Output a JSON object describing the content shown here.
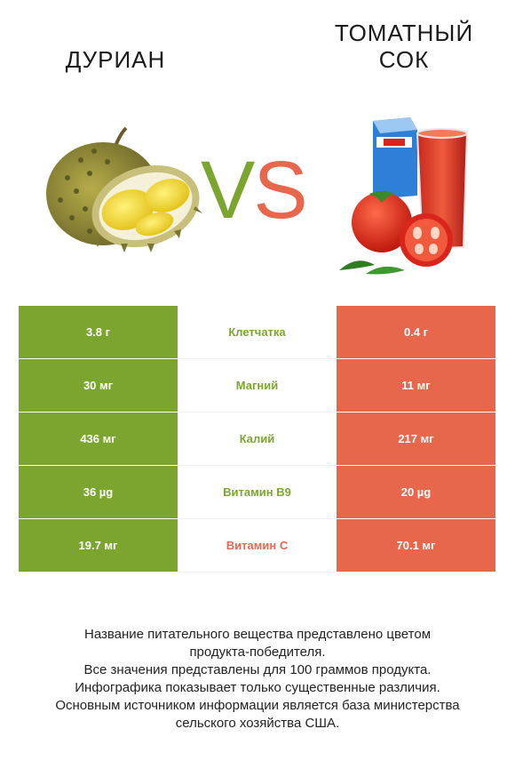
{
  "left_title": "ДУРИАН",
  "right_title_line1": "ТОМАТНЫЙ",
  "right_title_line2": "СОК",
  "vs_v": "V",
  "vs_s": "S",
  "colors": {
    "green": "#7ba52f",
    "red": "#e7674c"
  },
  "rows": [
    {
      "left": "3.8 г",
      "nutrient": "Клетчатка",
      "right": "0.4 г",
      "winner": "green"
    },
    {
      "left": "30 мг",
      "nutrient": "Магний",
      "right": "11 мг",
      "winner": "green"
    },
    {
      "left": "436 мг",
      "nutrient": "Калий",
      "right": "217 мг",
      "winner": "green"
    },
    {
      "left": "36 µg",
      "nutrient": "Витамин B9",
      "right": "20 µg",
      "winner": "green"
    },
    {
      "left": "19.7 мг",
      "nutrient": "Витамин C",
      "right": "70.1 мг",
      "winner": "red"
    }
  ],
  "footer": {
    "line1": "Название питательного вещества представлено цветом",
    "line2": "продукта-победителя.",
    "line3": "Все значения представлены для 100 граммов продукта.",
    "line4": "Инфографика показывает только существенные различия.",
    "line5": "Основным источником информации является база министерства",
    "line6": "сельского хозяйства США."
  }
}
